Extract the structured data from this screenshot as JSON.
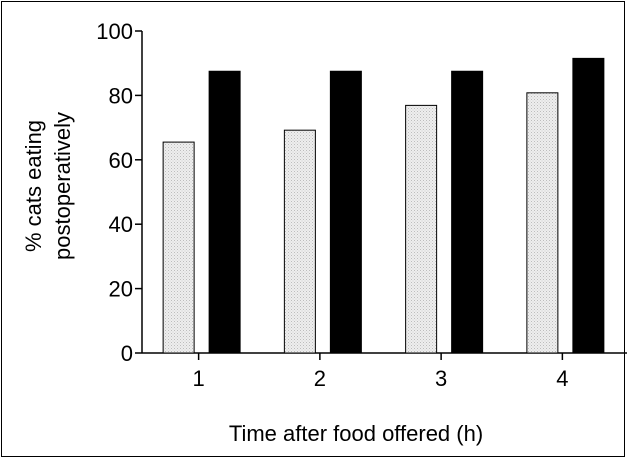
{
  "chart_data": {
    "type": "bar",
    "categories": [
      "1",
      "2",
      "3",
      "4"
    ],
    "series": [
      {
        "values": [
          65.5,
          69.2,
          76.9,
          80.8
        ],
        "color": "#e4e4e4",
        "pattern": "stippled-light"
      },
      {
        "values": [
          87.5,
          87.5,
          87.5,
          91.5
        ],
        "color": "#000000",
        "pattern": "solid"
      }
    ],
    "title": "",
    "xlabel": "Time after food offered (h)",
    "ylabel_lines": [
      "% cats eating",
      "postoperatively"
    ],
    "ylim": [
      0,
      100
    ],
    "yticks": [
      0,
      20,
      40,
      60,
      80,
      100
    ],
    "grid": false,
    "legend": "none"
  }
}
